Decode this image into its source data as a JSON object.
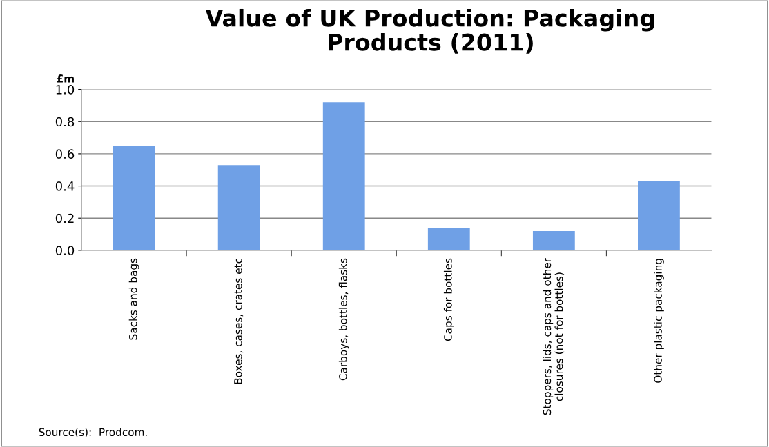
{
  "chart_data": {
    "type": "bar",
    "title": "Value of UK Production: Packaging\nProducts (2011)",
    "ylabel": "£m",
    "categories": [
      "Sacks and bags",
      "Boxes, cases, crates etc",
      "Carboys, bottles, flasks",
      "Caps for bottles",
      "Stoppers, lids, caps and other\nclosures (not for bottles)",
      "Other plastic packaging"
    ],
    "values": [
      0.65,
      0.53,
      0.92,
      0.14,
      0.12,
      0.43
    ],
    "color": "#6fa0e6",
    "ylim": [
      0,
      1.0
    ],
    "yticks": [
      {
        "value": 0,
        "label": "0.0"
      },
      {
        "value": 0.2,
        "label": "0.2"
      },
      {
        "value": 0.4,
        "label": "0.4"
      },
      {
        "value": 0.6,
        "label": "0.6"
      },
      {
        "value": 0.8,
        "label": "0.8"
      },
      {
        "value": 1.0,
        "label": "1.0"
      }
    ],
    "grid": "y",
    "legend": false,
    "annotations": [
      "Source(s):  Prodcom."
    ]
  }
}
